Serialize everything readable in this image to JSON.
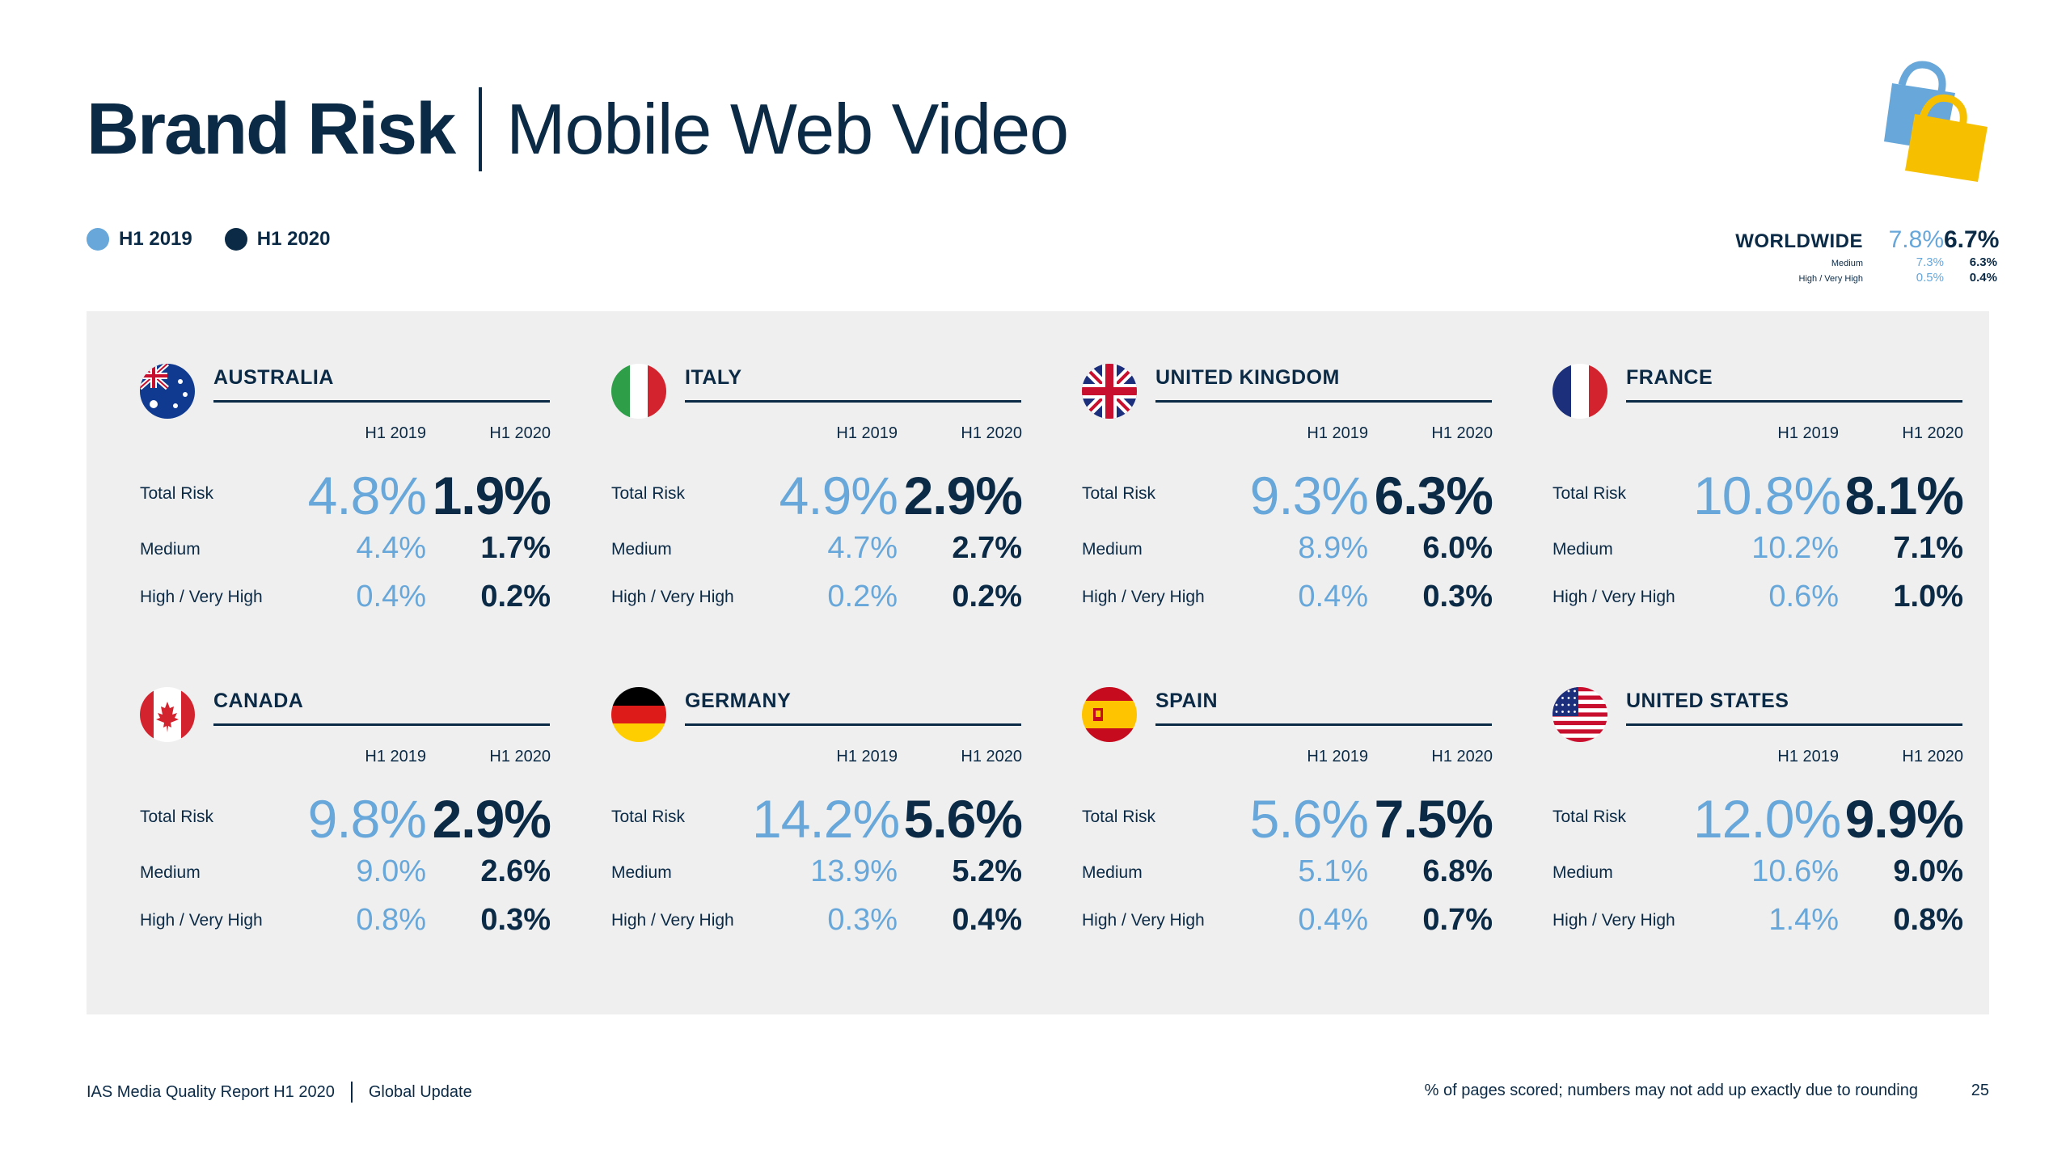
{
  "title": {
    "bold": "Brand Risk",
    "light": "Mobile Web Video"
  },
  "legend": [
    {
      "label": "H1 2019",
      "color": "#67a7da"
    },
    {
      "label": "H1 2020",
      "color": "#0b2a45"
    }
  ],
  "worldwide": {
    "label": "WORLDWIDE",
    "total": {
      "h1_2019": "7.8%",
      "h1_2020": "6.7%"
    },
    "medium": {
      "label": "Medium",
      "h1_2019": "7.3%",
      "h1_2020": "6.3%"
    },
    "high": {
      "label": "High / Very High",
      "h1_2019": "0.5%",
      "h1_2020": "0.4%"
    }
  },
  "row_labels": {
    "total": "Total Risk",
    "medium": "Medium",
    "high": "High / Very High"
  },
  "col_labels": {
    "a": "H1 2019",
    "b": "H1 2020"
  },
  "countries": [
    {
      "name": "AUSTRALIA",
      "flag": "australia-flag-icon",
      "total": [
        "4.8%",
        "1.9%"
      ],
      "medium": [
        "4.4%",
        "1.7%"
      ],
      "high": [
        "0.4%",
        "0.2%"
      ]
    },
    {
      "name": "ITALY",
      "flag": "italy-flag-icon",
      "total": [
        "4.9%",
        "2.9%"
      ],
      "medium": [
        "4.7%",
        "2.7%"
      ],
      "high": [
        "0.2%",
        "0.2%"
      ]
    },
    {
      "name": "UNITED KINGDOM",
      "flag": "uk-flag-icon",
      "total": [
        "9.3%",
        "6.3%"
      ],
      "medium": [
        "8.9%",
        "6.0%"
      ],
      "high": [
        "0.4%",
        "0.3%"
      ]
    },
    {
      "name": "FRANCE",
      "flag": "france-flag-icon",
      "total": [
        "10.8%",
        "8.1%"
      ],
      "medium": [
        "10.2%",
        "7.1%"
      ],
      "high": [
        "0.6%",
        "1.0%"
      ]
    },
    {
      "name": "CANADA",
      "flag": "canada-flag-icon",
      "total": [
        "9.8%",
        "2.9%"
      ],
      "medium": [
        "9.0%",
        "2.6%"
      ],
      "high": [
        "0.8%",
        "0.3%"
      ]
    },
    {
      "name": "GERMANY",
      "flag": "germany-flag-icon",
      "total": [
        "14.2%",
        "5.6%"
      ],
      "medium": [
        "13.9%",
        "5.2%"
      ],
      "high": [
        "0.3%",
        "0.4%"
      ]
    },
    {
      "name": "SPAIN",
      "flag": "spain-flag-icon",
      "total": [
        "5.6%",
        "7.5%"
      ],
      "medium": [
        "5.1%",
        "6.8%"
      ],
      "high": [
        "0.4%",
        "0.7%"
      ]
    },
    {
      "name": "UNITED STATES",
      "flag": "usa-flag-icon",
      "total": [
        "12.0%",
        "9.9%"
      ],
      "medium": [
        "10.6%",
        "9.0%"
      ],
      "high": [
        "1.4%",
        "0.8%"
      ]
    }
  ],
  "footer": {
    "report": "IAS Media Quality Report H1 2020",
    "section": "Global Update",
    "note": "% of pages scored; numbers may not add up exactly due to rounding",
    "page": "25"
  }
}
